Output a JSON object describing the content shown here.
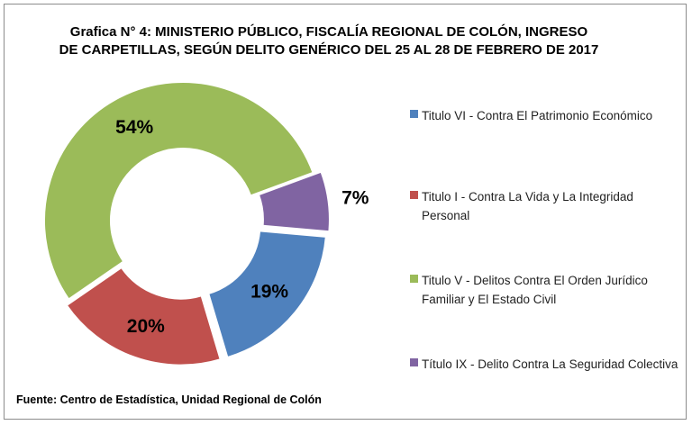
{
  "title_line1": "Grafica N° 4:  MINISTERIO PÚBLICO, FISCALÍA REGIONAL  DE COLÓN,  INGRESO",
  "title_line2": "DE CARPETILLAS, SEGÚN DELITO GENÉRICO DEL 25 AL 28 DE FEBRERO DE 2017",
  "source": "Fuente: Centro de Estadística, Unidad Regional de Colón",
  "chart_data": {
    "type": "pie",
    "variant": "donut",
    "title": "Grafica N° 4:  MINISTERIO PÚBLICO, FISCALÍA REGIONAL  DE COLÓN,  INGRESO DE CARPETILLAS, SEGÚN DELITO GENÉRICO DEL 25 AL 28 DE FEBRERO DE 2017",
    "legend_position": "right",
    "slices": [
      {
        "label": "Titulo VI - Contra El Patrimonio Económico",
        "value": 19,
        "display": "19%",
        "color": "#4f81bd"
      },
      {
        "label": "Titulo I - Contra La Vida y La Integridad Personal",
        "value": 20,
        "display": "20%",
        "color": "#c0504d"
      },
      {
        "label": "Titulo V - Delitos Contra El Orden Jurídico Familiar y El Estado Civil",
        "value": 54,
        "display": "54%",
        "color": "#9bbb59"
      },
      {
        "label": "Título IX - Delito Contra La Seguridad Colectiva",
        "value": 7,
        "display": "7%",
        "color": "#8064a2"
      }
    ]
  }
}
